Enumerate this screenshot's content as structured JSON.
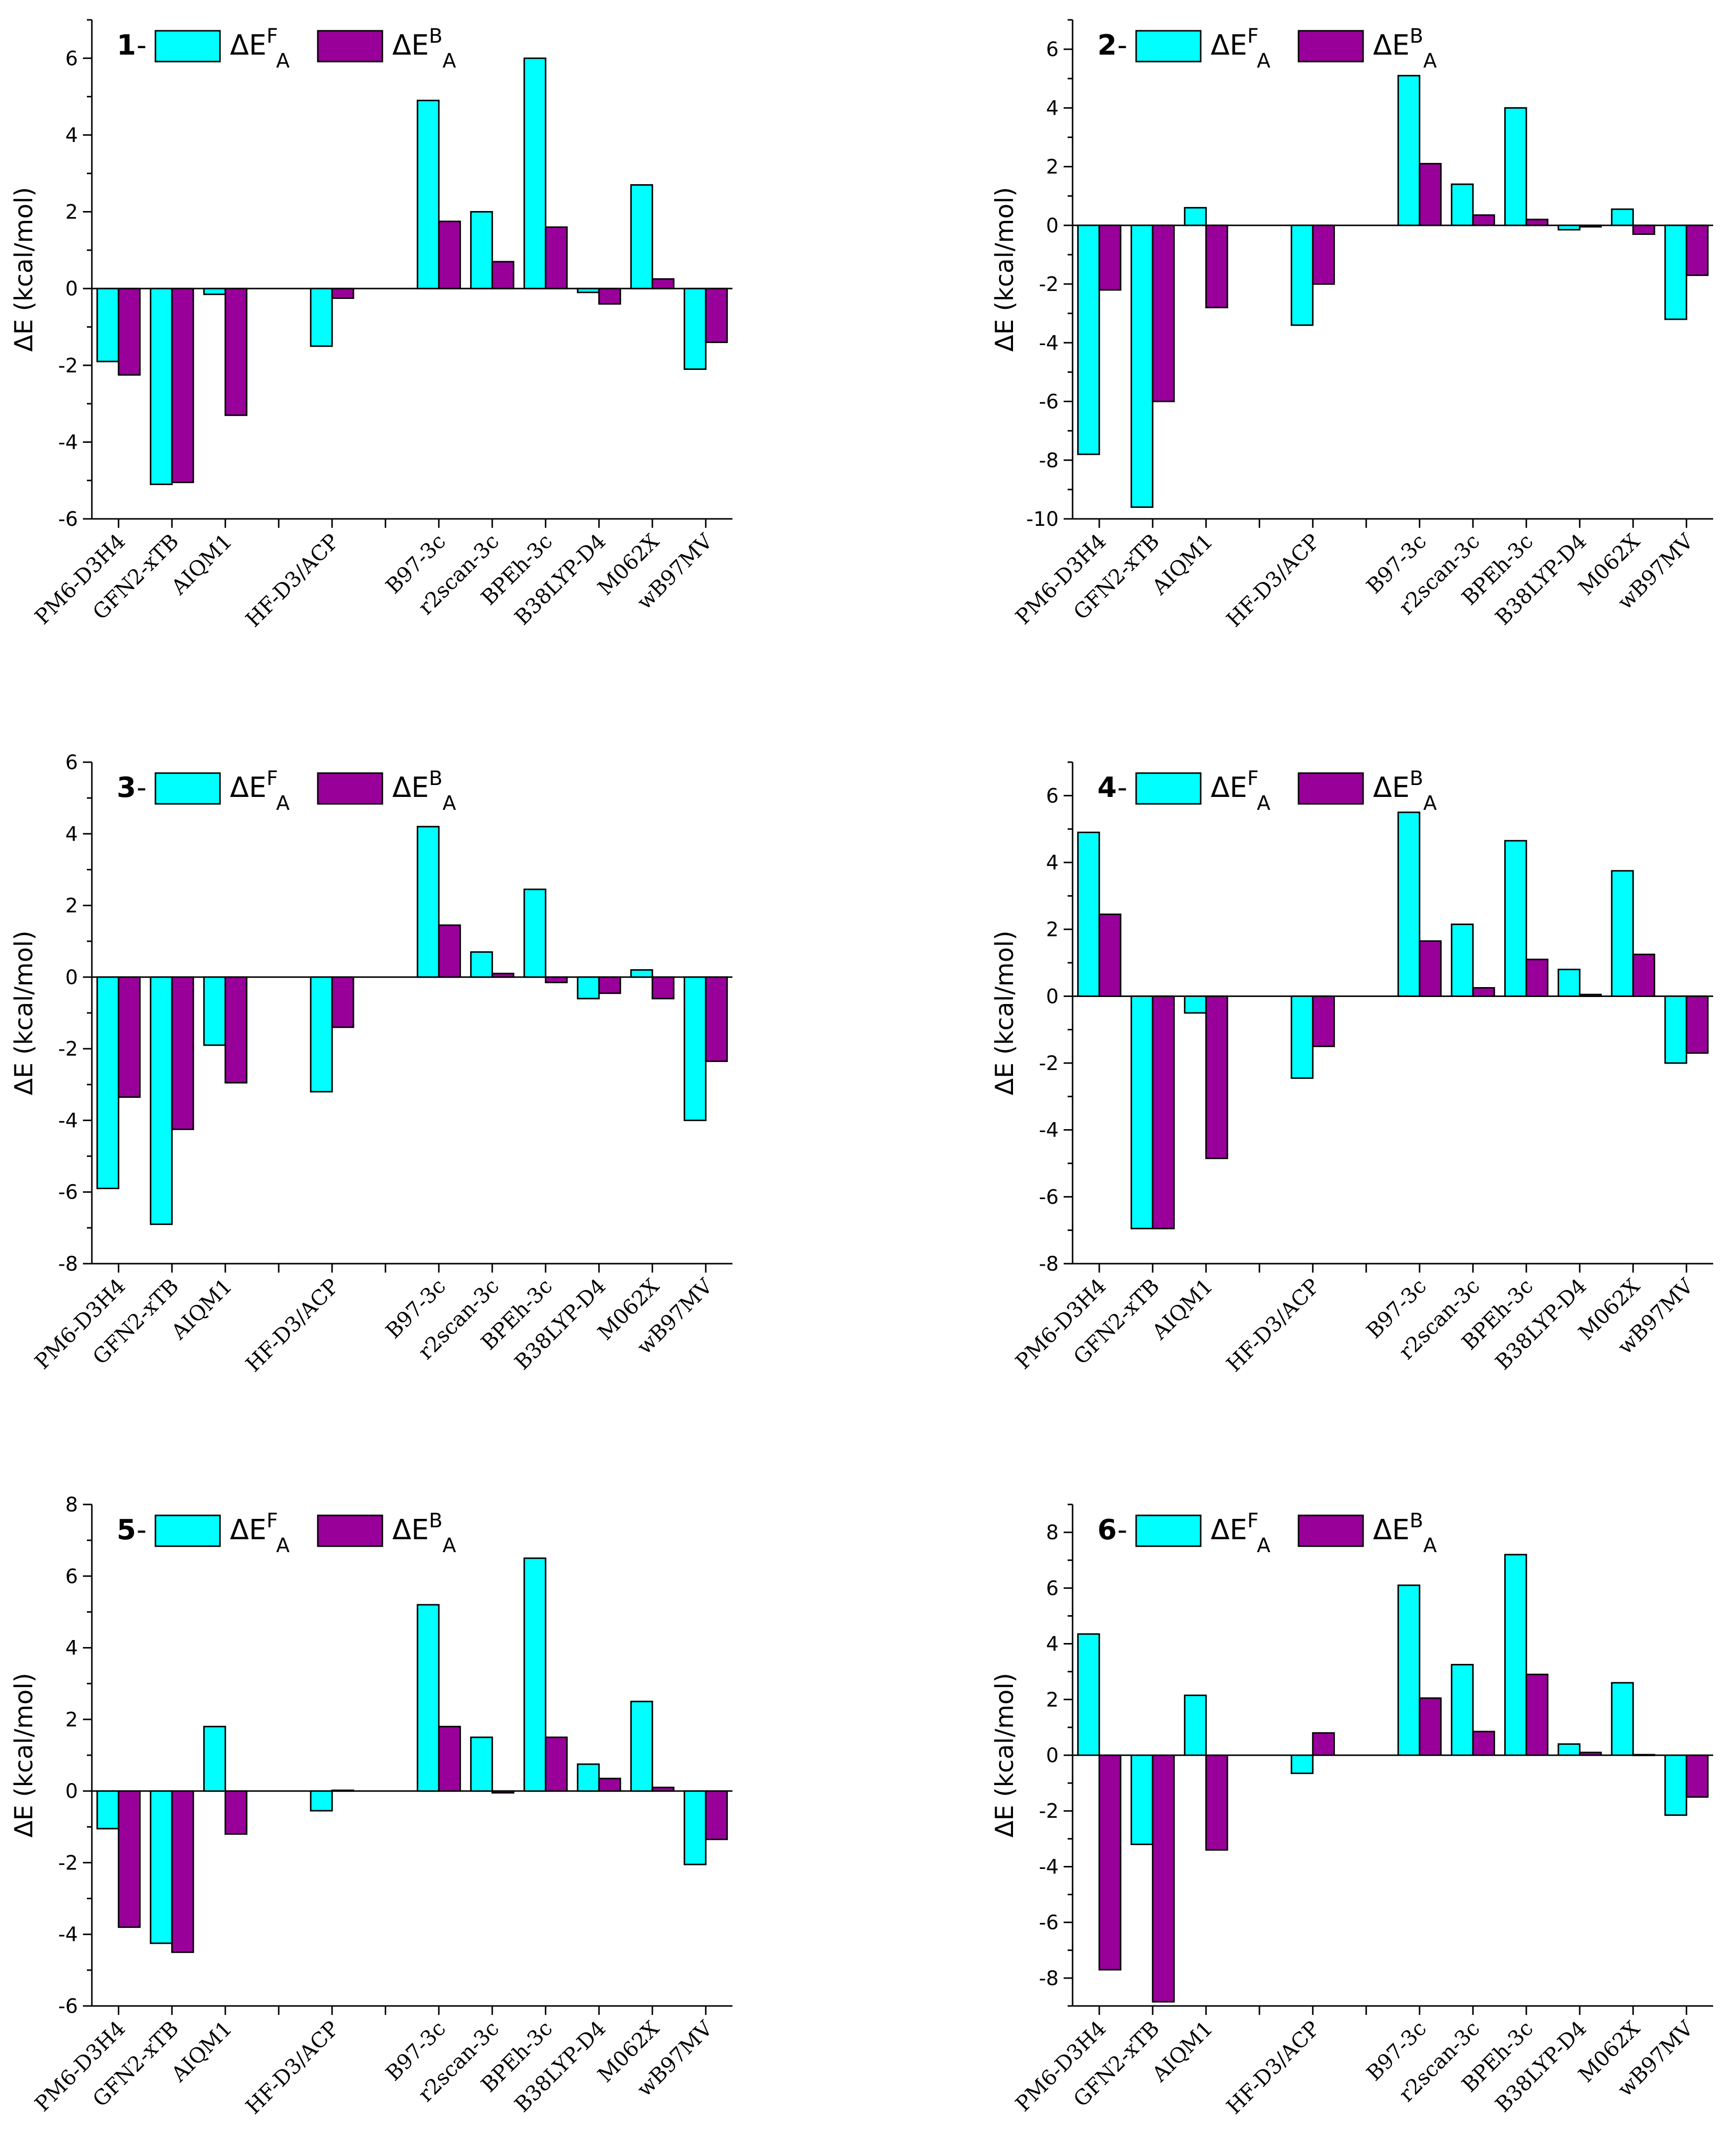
{
  "colors": {
    "forward": "#00ffff",
    "backward": "#990099",
    "axis": "#000000"
  },
  "legend": {
    "forward_label": "ΔE",
    "forward_sup": "F",
    "forward_sub": "A",
    "backward_label": "ΔE",
    "backward_sup": "B",
    "backward_sub": "A",
    "dash": "-"
  },
  "chart_data": [
    {
      "type": "bar",
      "panel": "1",
      "ylabel": "ΔE (kcal/mol)",
      "ylim": [
        -6,
        7
      ],
      "yticks": [
        -6,
        -4,
        -2,
        0,
        2,
        4,
        6
      ],
      "categories": [
        "PM6-D3H4",
        "GFN2-xTB",
        "AIQM1",
        "",
        "HF-D3/ACP",
        "",
        "B97-3c",
        "r2scan-3c",
        "BPEh-3c",
        "B38LYP-D4",
        "M062X",
        "wB97MV"
      ],
      "series": [
        {
          "name": "ΔE^F_A",
          "values": [
            -1.9,
            -5.1,
            -0.15,
            null,
            -1.5,
            null,
            4.9,
            2.0,
            6.0,
            -0.1,
            2.7,
            -2.1
          ]
        },
        {
          "name": "ΔE^B_A",
          "values": [
            -2.25,
            -5.05,
            -3.3,
            null,
            -0.25,
            null,
            1.75,
            0.7,
            1.6,
            -0.4,
            0.25,
            -1.4
          ]
        }
      ]
    },
    {
      "type": "bar",
      "panel": "2",
      "ylabel": "ΔE (kcal/mol)",
      "ylim": [
        -10,
        7
      ],
      "yticks": [
        -10,
        -8,
        -6,
        -4,
        -2,
        0,
        2,
        4,
        6
      ],
      "categories": [
        "PM6-D3H4",
        "GFN2-xTB",
        "AIQM1",
        "",
        "HF-D3/ACP",
        "",
        "B97-3c",
        "r2scan-3c",
        "BPEh-3c",
        "B38LYP-D4",
        "M062X",
        "wB97MV"
      ],
      "series": [
        {
          "name": "ΔE^F_A",
          "values": [
            -7.8,
            -9.6,
            0.6,
            null,
            -3.4,
            null,
            5.1,
            1.4,
            4.0,
            -0.15,
            0.55,
            -3.2
          ]
        },
        {
          "name": "ΔE^B_A",
          "values": [
            -2.2,
            -6.0,
            -2.8,
            null,
            -2.0,
            null,
            2.1,
            0.35,
            0.2,
            -0.05,
            -0.3,
            -1.7
          ]
        }
      ]
    },
    {
      "type": "bar",
      "panel": "3",
      "ylabel": "ΔE (kcal/mol)",
      "ylim": [
        -8,
        6
      ],
      "yticks": [
        -8,
        -6,
        -4,
        -2,
        0,
        2,
        4,
        6
      ],
      "categories": [
        "PM6-D3H4",
        "GFN2-xTB",
        "AIQM1",
        "",
        "HF-D3/ACP",
        "",
        "B97-3c",
        "r2scan-3c",
        "BPEh-3c",
        "B38LYP-D4",
        "M062X",
        "wB97MV"
      ],
      "series": [
        {
          "name": "ΔE^F_A",
          "values": [
            -5.9,
            -6.9,
            -1.9,
            null,
            -3.2,
            null,
            4.2,
            0.7,
            2.45,
            -0.6,
            0.2,
            -4.0
          ]
        },
        {
          "name": "ΔE^B_A",
          "values": [
            -3.35,
            -4.25,
            -2.95,
            null,
            -1.4,
            null,
            1.45,
            0.1,
            -0.15,
            -0.45,
            -0.6,
            -2.35
          ]
        }
      ]
    },
    {
      "type": "bar",
      "panel": "4",
      "ylabel": "ΔE (kcal/mol)",
      "ylim": [
        -8,
        7
      ],
      "yticks": [
        -8,
        -6,
        -4,
        -2,
        0,
        2,
        4,
        6
      ],
      "categories": [
        "PM6-D3H4",
        "GFN2-xTB",
        "AIQM1",
        "",
        "HF-D3/ACP",
        "",
        "B97-3c",
        "r2scan-3c",
        "BPEh-3c",
        "B38LYP-D4",
        "M062X",
        "wB97MV"
      ],
      "series": [
        {
          "name": "ΔE^F_A",
          "values": [
            4.9,
            -6.95,
            -0.5,
            null,
            -2.45,
            null,
            5.5,
            2.15,
            4.65,
            0.8,
            3.75,
            -2.0
          ]
        },
        {
          "name": "ΔE^B_A",
          "values": [
            2.45,
            -6.95,
            -4.85,
            null,
            -1.5,
            null,
            1.65,
            0.25,
            1.1,
            0.05,
            1.25,
            -1.7
          ]
        }
      ]
    },
    {
      "type": "bar",
      "panel": "5",
      "ylabel": "ΔE (kcal/mol)",
      "ylim": [
        -6,
        8
      ],
      "yticks": [
        -6,
        -4,
        -2,
        0,
        2,
        4,
        6,
        8
      ],
      "categories": [
        "PM6-D3H4",
        "GFN2-xTB",
        "AIQM1",
        "",
        "HF-D3/ACP",
        "",
        "B97-3c",
        "r2scan-3c",
        "BPEh-3c",
        "B38LYP-D4",
        "M062X",
        "wB97MV"
      ],
      "series": [
        {
          "name": "ΔE^F_A",
          "values": [
            -1.05,
            -4.25,
            1.8,
            null,
            -0.55,
            null,
            5.2,
            1.5,
            6.5,
            0.75,
            2.5,
            -2.05
          ]
        },
        {
          "name": "ΔE^B_A",
          "values": [
            -3.8,
            -4.5,
            -1.2,
            null,
            0.02,
            null,
            1.8,
            -0.05,
            1.5,
            0.35,
            0.1,
            -1.35
          ]
        }
      ]
    },
    {
      "type": "bar",
      "panel": "6",
      "ylabel": "ΔE (kcal/mol)",
      "ylim": [
        -9,
        9
      ],
      "yticks": [
        -8,
        -6,
        -4,
        -2,
        0,
        2,
        4,
        6,
        8
      ],
      "categories": [
        "PM6-D3H4",
        "GFN2-xTB",
        "AIQM1",
        "",
        "HF-D3/ACP",
        "",
        "B97-3c",
        "r2scan-3c",
        "BPEh-3c",
        "B38LYP-D4",
        "M062X",
        "wB97MV"
      ],
      "series": [
        {
          "name": "ΔE^F_A",
          "values": [
            4.35,
            -3.2,
            2.15,
            null,
            -0.65,
            null,
            6.1,
            3.25,
            7.2,
            0.4,
            2.6,
            -2.15
          ]
        },
        {
          "name": "ΔE^B_A",
          "values": [
            -7.7,
            -8.85,
            -3.4,
            null,
            0.8,
            null,
            2.05,
            0.85,
            2.9,
            0.1,
            0.02,
            -1.5
          ]
        }
      ]
    }
  ]
}
